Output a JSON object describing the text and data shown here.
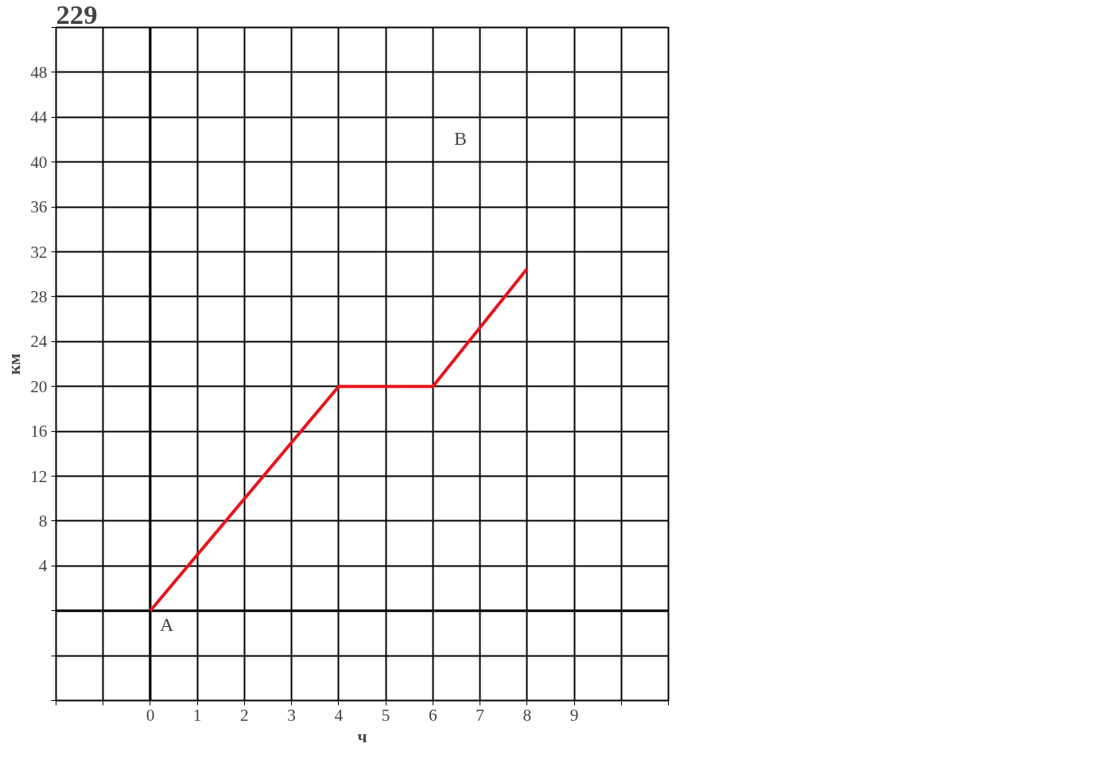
{
  "chart_data": {
    "type": "line",
    "title": "229",
    "xlabel": "ч",
    "ylabel": "км",
    "x": [
      0,
      4,
      6,
      8
    ],
    "series": [
      {
        "color": "#e8141b",
        "values": [
          0,
          20,
          20,
          30.5
        ]
      }
    ],
    "xlim": [
      -2,
      11
    ],
    "ylim": [
      -8,
      52
    ],
    "xticks": [
      {
        "value": -2,
        "label": null
      },
      {
        "value": -1,
        "label": null
      },
      0,
      1,
      2,
      3,
      4,
      5,
      6,
      7,
      8,
      9,
      {
        "value": 10,
        "label": null
      },
      {
        "value": 11,
        "label": null
      }
    ],
    "yticks": [
      {
        "value": -8,
        "label": null
      },
      {
        "value": -4,
        "label": null
      },
      {
        "value": 0,
        "label": null
      },
      4,
      8,
      12,
      16,
      20,
      24,
      28,
      32,
      36,
      40,
      44,
      48,
      {
        "value": 52,
        "label": null
      }
    ],
    "grid": true,
    "marker": "none",
    "line_style": "solid",
    "annotations": [
      {
        "text": "A",
        "x": 0,
        "y": 0
      },
      "B"
    ]
  }
}
